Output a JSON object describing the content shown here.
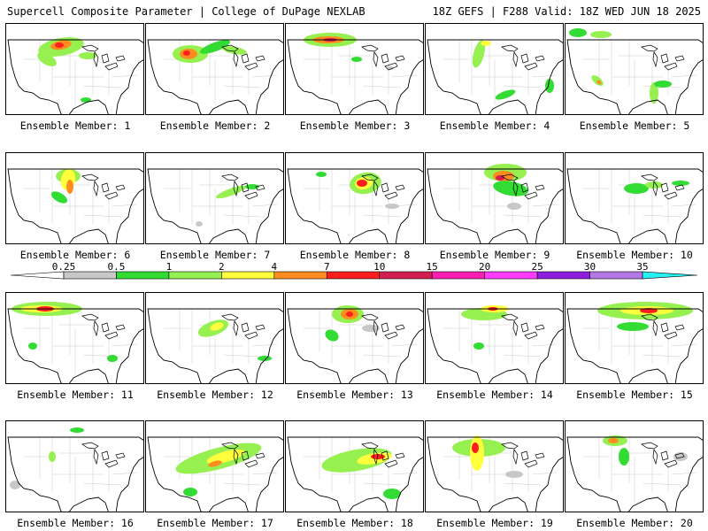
{
  "header": {
    "left": "Supercell Composite Parameter | College of DuPage NEXLAB",
    "right": "18Z GEFS | F288 Valid: 18Z WED JUN 18 2025"
  },
  "colorbar": {
    "levels": [
      "0.25",
      "0.5",
      "1",
      "2",
      "4",
      "7",
      "10",
      "15",
      "20",
      "25",
      "30",
      "35"
    ],
    "colors": [
      "#c8c8c8",
      "#32dc32",
      "#96f050",
      "#ffff3c",
      "#ff8c1e",
      "#ff1e1e",
      "#d21e50",
      "#ff1eb4",
      "#ff3cff",
      "#8c1edc",
      "#b478e6",
      "#28f0f0"
    ]
  },
  "members": [
    {
      "label": "Ensemble Member: 1"
    },
    {
      "label": "Ensemble Member: 2"
    },
    {
      "label": "Ensemble Member: 3"
    },
    {
      "label": "Ensemble Member: 4"
    },
    {
      "label": "Ensemble Member: 5"
    },
    {
      "label": "Ensemble Member: 6"
    },
    {
      "label": "Ensemble Member: 7"
    },
    {
      "label": "Ensemble Member: 8"
    },
    {
      "label": "Ensemble Member: 9"
    },
    {
      "label": "Ensemble Member: 10"
    },
    {
      "label": "Ensemble Member: 11"
    },
    {
      "label": "Ensemble Member: 12"
    },
    {
      "label": "Ensemble Member: 13"
    },
    {
      "label": "Ensemble Member: 14"
    },
    {
      "label": "Ensemble Member: 15"
    },
    {
      "label": "Ensemble Member: 16"
    },
    {
      "label": "Ensemble Member: 17"
    },
    {
      "label": "Ensemble Member: 18"
    },
    {
      "label": "Ensemble Member: 19"
    },
    {
      "label": "Ensemble Member: 20"
    }
  ]
}
